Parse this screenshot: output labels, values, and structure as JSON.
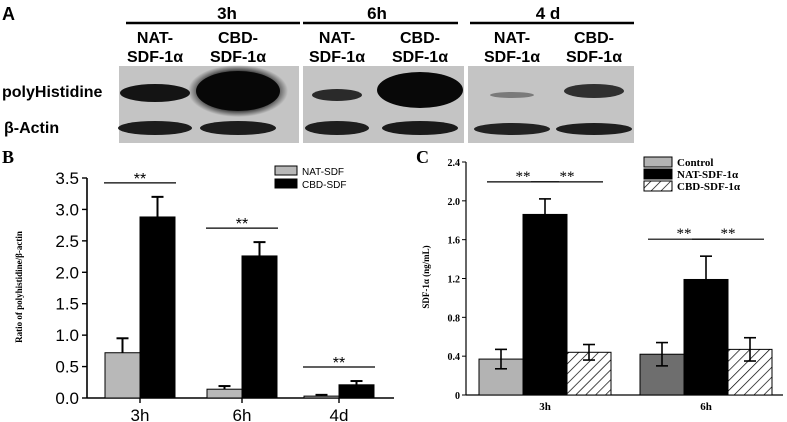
{
  "panel_a": {
    "label": "A",
    "groups": [
      {
        "time": "3h",
        "lanes": [
          "NAT-\nSDF-1α",
          "CBD-\nSDF-1α"
        ]
      },
      {
        "time": "6h",
        "lanes": [
          "NAT-\nSDF-1α",
          "CBD-\nSDF-1α"
        ]
      },
      {
        "time": "4 d",
        "lanes": [
          "NAT-\nSDF-1α",
          "CBD-\nSDF-1α"
        ]
      }
    ],
    "row_labels": [
      "polyHistidine",
      "β-Actin"
    ]
  },
  "chart_data": [
    {
      "panel": "B",
      "type": "bar",
      "ylabel": "Ratio of polyhistidine/β-actin",
      "xlabel": "",
      "categories": [
        "3h",
        "6h",
        "4d"
      ],
      "ylim": [
        0,
        3.5
      ],
      "yticks": [
        "0.0",
        "0.5",
        "1.0",
        "1.5",
        "2.0",
        "2.5",
        "3.0",
        "3.5"
      ],
      "series": [
        {
          "name": "NAT-SDF",
          "color": "#b8b8b8",
          "values": [
            0.72,
            0.14,
            0.03
          ],
          "errors": [
            0.23,
            0.05,
            0.02
          ]
        },
        {
          "name": "CBD-SDF",
          "color": "#000000",
          "values": [
            2.88,
            2.26,
            0.21
          ],
          "errors": [
            0.32,
            0.22,
            0.06
          ]
        }
      ],
      "significance": [
        "**",
        "**",
        "**"
      ],
      "legend_position": "top-right"
    },
    {
      "panel": "C",
      "type": "bar",
      "ylabel": "SDF-1α (ng/mL)",
      "xlabel": "",
      "categories": [
        "3h",
        "6h"
      ],
      "ylim": [
        0,
        2.4
      ],
      "yticks": [
        "0",
        "0.4",
        "0.8",
        "1.2",
        "1.6",
        "2.0",
        "2.4"
      ],
      "series": [
        {
          "name": "Control",
          "color": "#b8b8b8",
          "values": [
            0.37,
            0.42
          ],
          "errors": [
            0.1,
            0.12
          ]
        },
        {
          "name": "NAT-SDF-1α",
          "color": "#000000",
          "values": [
            1.86,
            1.19
          ],
          "errors": [
            0.16,
            0.24
          ]
        },
        {
          "name": "CBD-SDF-1α",
          "color": "hatch",
          "values": [
            0.44,
            0.47
          ],
          "errors": [
            0.08,
            0.12
          ]
        }
      ],
      "significance": [
        "**",
        "**",
        "**",
        "**"
      ],
      "legend_position": "top-right"
    }
  ]
}
